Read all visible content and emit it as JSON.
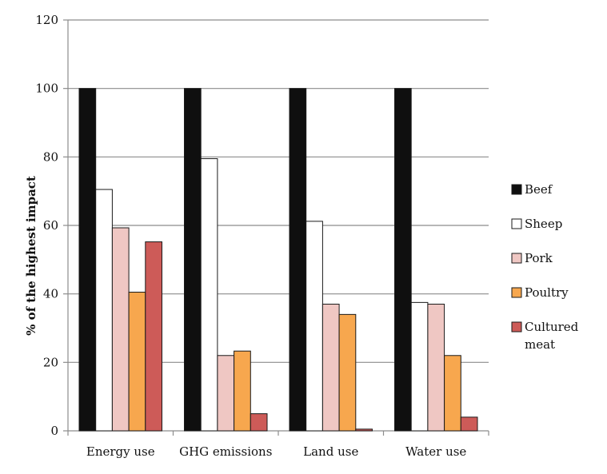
{
  "chart_data": {
    "type": "bar",
    "title": "",
    "xlabel": "",
    "ylabel": "% of the highest impact",
    "ylim": [
      0,
      120
    ],
    "yticks": [
      0,
      20,
      40,
      60,
      80,
      100,
      120
    ],
    "grid": true,
    "legend_position": "right",
    "categories": [
      "Energy use",
      "GHG emissions",
      "Land use",
      "Water use"
    ],
    "series": [
      {
        "name": "Beef",
        "color": "#0f0f0f",
        "values": [
          100,
          100,
          100,
          100
        ]
      },
      {
        "name": "Sheep",
        "color": "#ffffff",
        "values": [
          70.5,
          79.5,
          61.2,
          37.5
        ]
      },
      {
        "name": "Pork",
        "color": "#efc7c3",
        "values": [
          59.3,
          22.0,
          37.0,
          37.0
        ]
      },
      {
        "name": "Poultry",
        "color": "#f7a74e",
        "values": [
          40.5,
          23.3,
          34.0,
          22.0
        ]
      },
      {
        "name": "Cultured meat",
        "color": "#cd5b58",
        "legend_lines": [
          "Cultured",
          "meat"
        ],
        "values": [
          55.2,
          5.0,
          0.5,
          4.0
        ]
      }
    ]
  }
}
